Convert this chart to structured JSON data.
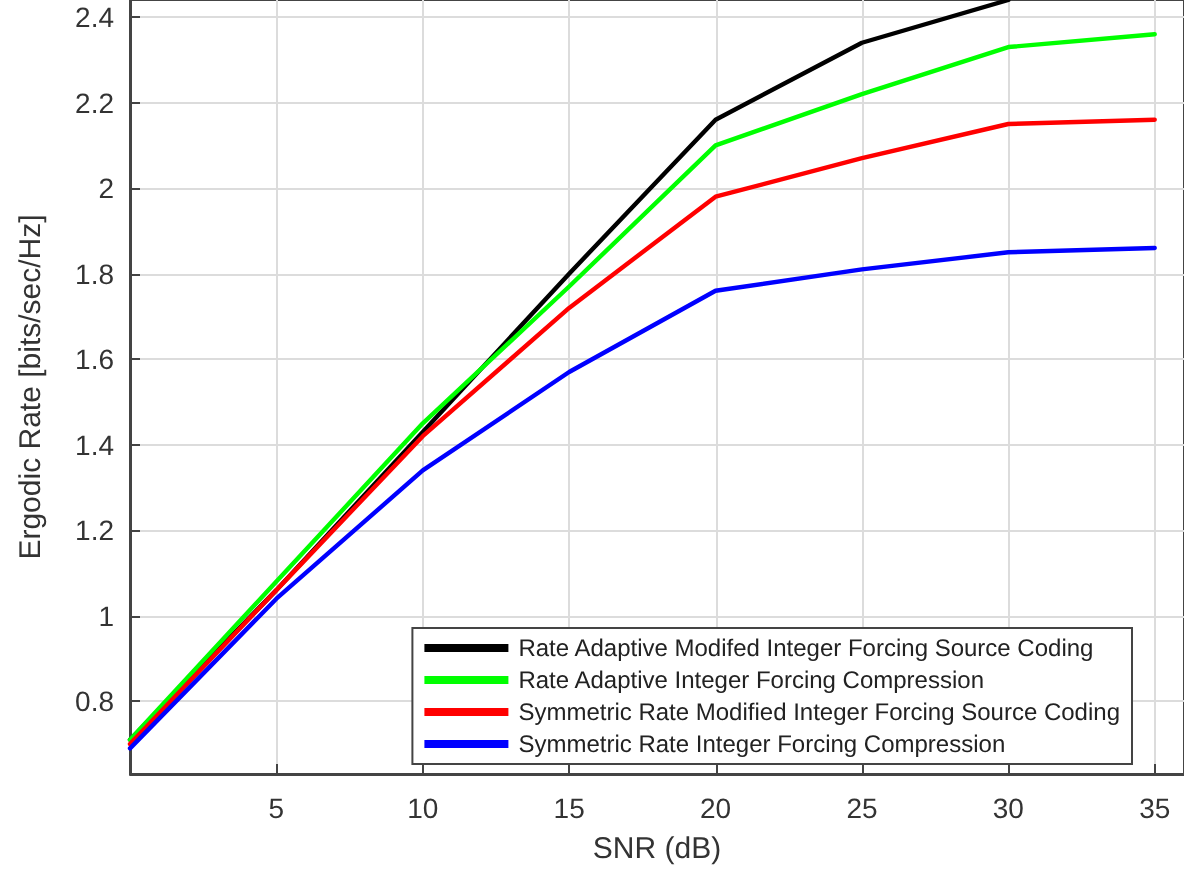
{
  "chart_data": {
    "type": "line",
    "xlabel": "SNR (dB)",
    "ylabel": "Ergodic Rate [bits/sec/Hz]",
    "x": [
      0,
      5,
      10,
      15,
      20,
      25,
      30,
      35
    ],
    "series": [
      {
        "name": "Rate Adaptive Modifed Integer Forcing Source Coding",
        "color": "#000000",
        "values": [
          0.71,
          1.06,
          1.43,
          1.8,
          2.16,
          2.34,
          2.44,
          null
        ]
      },
      {
        "name": "Rate Adaptive Integer Forcing Compression",
        "color": "#00ff00",
        "values": [
          0.71,
          1.08,
          1.45,
          1.77,
          2.1,
          2.22,
          2.33,
          2.36
        ]
      },
      {
        "name": "Symmetric Rate Modified Integer Forcing Source Coding",
        "color": "#ff0000",
        "values": [
          0.7,
          1.06,
          1.42,
          1.72,
          1.98,
          2.07,
          2.15,
          2.16
        ]
      },
      {
        "name": "Symmetric Rate Integer Forcing Compression",
        "color": "#0000ff",
        "values": [
          0.69,
          1.04,
          1.34,
          1.57,
          1.76,
          1.81,
          1.85,
          1.86
        ]
      }
    ],
    "xlim": [
      0,
      36
    ],
    "xticks": [
      5,
      10,
      15,
      20,
      25,
      30,
      35
    ],
    "ylim": [
      0.63,
      2.44
    ],
    "yticks": [
      0.8,
      1,
      1.2,
      1.4,
      1.6,
      1.8,
      2,
      2.2,
      2.4
    ],
    "grid": true,
    "legend": "bottom right",
    "marker": "none",
    "line_style": "solid"
  }
}
